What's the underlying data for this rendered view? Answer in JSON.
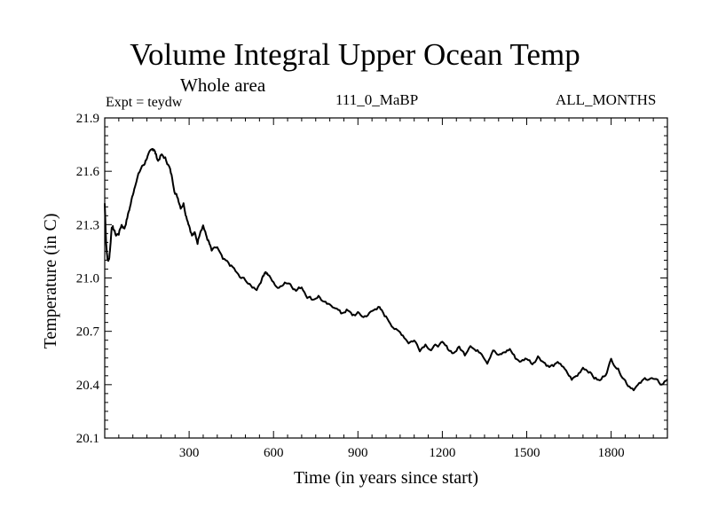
{
  "chart_data": {
    "type": "line",
    "title": "Volume Integral Upper Ocean Temp",
    "subtitle": "Whole area",
    "expt_label": "Expt = teydw",
    "run_id": "111_0_MaBP",
    "months_label": "ALL_MONTHS",
    "xlabel": "Time (in years since start)",
    "ylabel": "Temperature (in C)",
    "xlim": [
      0,
      2000
    ],
    "ylim": [
      20.1,
      21.9
    ],
    "xticks": [
      300,
      600,
      900,
      1200,
      1500,
      1800
    ],
    "yticks": [
      20.1,
      20.4,
      20.7,
      21.0,
      21.3,
      21.6,
      21.9
    ],
    "ytick_labels": [
      "20.1",
      "20.4",
      "20.7",
      "21.0",
      "21.3",
      "21.6",
      "21.9"
    ],
    "grid": false,
    "series": [
      {
        "name": "teydw",
        "color": "#000000",
        "x": [
          0,
          5,
          10,
          15,
          20,
          25,
          30,
          40,
          50,
          60,
          70,
          80,
          90,
          100,
          110,
          120,
          130,
          140,
          150,
          160,
          170,
          175,
          180,
          190,
          200,
          210,
          220,
          230,
          240,
          250,
          260,
          270,
          280,
          290,
          300,
          310,
          320,
          330,
          340,
          350,
          360,
          370,
          380,
          400,
          420,
          440,
          460,
          480,
          500,
          520,
          540,
          560,
          570,
          580,
          600,
          620,
          640,
          660,
          680,
          700,
          720,
          740,
          760,
          780,
          800,
          820,
          840,
          860,
          880,
          900,
          920,
          940,
          960,
          970,
          980,
          1000,
          1020,
          1040,
          1060,
          1080,
          1100,
          1120,
          1140,
          1160,
          1180,
          1200,
          1220,
          1240,
          1260,
          1280,
          1300,
          1320,
          1340,
          1360,
          1380,
          1400,
          1420,
          1440,
          1460,
          1480,
          1500,
          1520,
          1540,
          1560,
          1580,
          1600,
          1620,
          1640,
          1660,
          1680,
          1700,
          1720,
          1740,
          1760,
          1780,
          1800,
          1820,
          1840,
          1860,
          1880,
          1900,
          1920,
          1940,
          1960,
          1980,
          2000
        ],
        "y": [
          21.42,
          21.2,
          21.1,
          21.1,
          21.18,
          21.29,
          21.28,
          21.24,
          21.25,
          21.3,
          21.28,
          21.34,
          21.4,
          21.47,
          21.54,
          21.58,
          21.62,
          21.64,
          21.68,
          21.7,
          21.72,
          21.73,
          21.7,
          21.66,
          21.69,
          21.68,
          21.66,
          21.62,
          21.56,
          21.48,
          21.45,
          21.4,
          21.42,
          21.35,
          21.3,
          21.24,
          21.25,
          21.2,
          21.27,
          21.3,
          21.24,
          21.2,
          21.15,
          21.17,
          21.1,
          21.08,
          21.05,
          21.0,
          20.99,
          20.95,
          20.94,
          21.0,
          21.04,
          21.02,
          20.97,
          20.94,
          20.98,
          20.97,
          20.93,
          20.95,
          20.9,
          20.88,
          20.9,
          20.86,
          20.84,
          20.84,
          20.8,
          20.82,
          20.79,
          20.8,
          20.78,
          20.8,
          20.82,
          20.84,
          20.82,
          20.78,
          20.74,
          20.7,
          20.68,
          20.64,
          20.65,
          20.6,
          20.63,
          20.6,
          20.62,
          20.63,
          20.6,
          20.58,
          20.61,
          20.57,
          20.63,
          20.59,
          20.58,
          20.53,
          20.6,
          20.56,
          20.58,
          20.6,
          20.55,
          20.53,
          20.55,
          20.52,
          20.56,
          20.53,
          20.5,
          20.51,
          20.52,
          20.47,
          20.43,
          20.45,
          20.5,
          20.48,
          20.44,
          20.42,
          20.46,
          20.54,
          20.5,
          20.45,
          20.4,
          20.38,
          20.4,
          20.43,
          20.44,
          20.42,
          20.4,
          20.43
        ]
      }
    ]
  }
}
